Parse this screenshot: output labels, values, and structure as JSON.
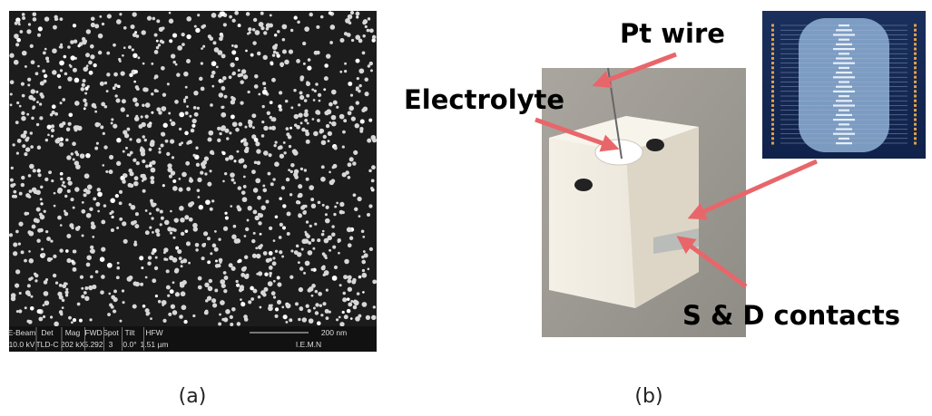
{
  "panel_a": {
    "caption": "(a)",
    "info_bar": {
      "fields": [
        {
          "label": "E-Beam",
          "value": "10.0 kV"
        },
        {
          "label": "Det",
          "value": "TLD-C"
        },
        {
          "label": "Mag",
          "value": "202 kX"
        },
        {
          "label": "FWD",
          "value": "5.292"
        },
        {
          "label": "Spot",
          "value": "3"
        },
        {
          "label": "Tilt",
          "value": "0.0°"
        },
        {
          "label": "HFW",
          "value": "1.51 µm"
        }
      ],
      "scale": "200 nm",
      "lab": "I.E.M.N"
    }
  },
  "panel_b": {
    "caption": "(b)",
    "labels": {
      "pt_wire": "Pt wire",
      "electrolyte": "Electrolyte",
      "contacts": "S & D contacts"
    }
  }
}
